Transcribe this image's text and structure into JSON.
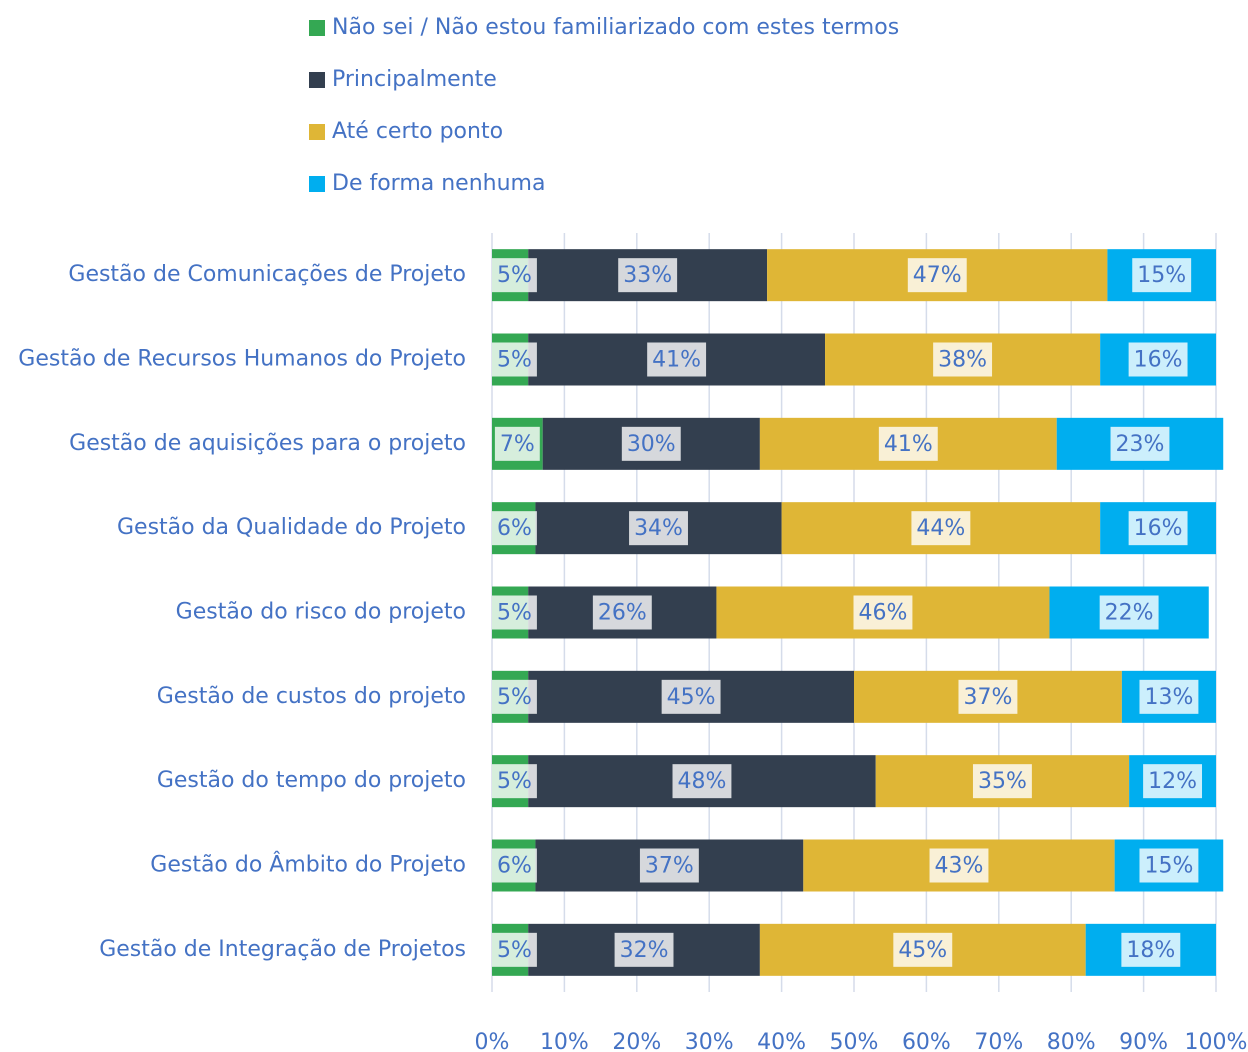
{
  "chart_data": {
    "type": "stacked-bar-horizontal",
    "categories": [
      "Gestão de Comunicações de Projeto",
      "Gestão de Recursos Humanos do Projeto",
      "Gestão de aquisições para o projeto",
      "Gestão da Qualidade do Projeto",
      "Gestão do risco do projeto",
      "Gestão de custos do projeto",
      "Gestão do tempo do projeto",
      "Gestão do Âmbito do Projeto",
      "Gestão de Integração de Projetos"
    ],
    "series": [
      {
        "name": "Não sei / Não estou familiarizado com estes termos",
        "color": "#34a853",
        "values": [
          5,
          5,
          7,
          6,
          5,
          5,
          5,
          6,
          5
        ],
        "value_labels": [
          "5%",
          "5%",
          "7%",
          "6%",
          "5%",
          "5%",
          "5%",
          "6%",
          "5%"
        ]
      },
      {
        "name": "Principalmente",
        "color": "#333f4f",
        "values": [
          33,
          41,
          30,
          34,
          26,
          45,
          48,
          37,
          32
        ],
        "value_labels": [
          "33%",
          "41%",
          "30%",
          "34%",
          "26%",
          "45%",
          "48%",
          "37%",
          "32%"
        ]
      },
      {
        "name": "Até certo ponto",
        "color": "#dfb636",
        "values": [
          47,
          38,
          41,
          44,
          46,
          37,
          35,
          43,
          45
        ],
        "value_labels": [
          "47%",
          "38%",
          "41%",
          "44%",
          "46%",
          "37%",
          "35%",
          "43%",
          "45%"
        ]
      },
      {
        "name": "De forma nenhuma",
        "color": "#00aeef",
        "values": [
          15,
          16,
          23,
          16,
          22,
          13,
          12,
          15,
          18
        ],
        "value_labels": [
          "15%",
          "16%",
          "23%",
          "16%",
          "22%",
          "13%",
          "12%",
          "15%",
          "18%"
        ]
      }
    ],
    "xlim": [
      0,
      100
    ],
    "xticks": [
      {
        "value": 0,
        "label": "0%"
      },
      {
        "value": 10,
        "label": "10%"
      },
      {
        "value": 20,
        "label": "20%"
      },
      {
        "value": 30,
        "label": "30%"
      },
      {
        "value": 40,
        "label": "40%"
      },
      {
        "value": 50,
        "label": "50%"
      },
      {
        "value": 60,
        "label": "60%"
      },
      {
        "value": 70,
        "label": "70%"
      },
      {
        "value": 80,
        "label": "80%"
      },
      {
        "value": 90,
        "label": "90%"
      },
      {
        "value": 100,
        "label": "100%"
      }
    ],
    "grid": true
  }
}
